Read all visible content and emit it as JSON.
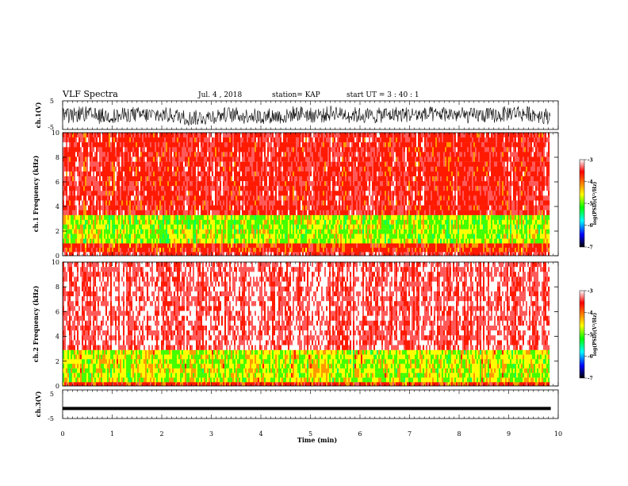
{
  "header": {
    "title": "VLF Spectra",
    "date": "Jul. 4 , 2018",
    "station": "station= KAP",
    "start": "start UT =  3 : 40 : 1"
  },
  "colorbar": {
    "label": "log(PSD)(V²/Hz)",
    "ticks": [
      "-3",
      "-4",
      "-5",
      "-6",
      "-7"
    ],
    "colors": [
      "#ffffff",
      "#ff0000",
      "#ffff00",
      "#00ff00",
      "#00ffff",
      "#0000ff",
      "#000000"
    ]
  },
  "chart_data": [
    {
      "type": "line",
      "panel": "ch1-waveform",
      "ylabel": "ch.1(V)",
      "ylim": [
        -5,
        5
      ],
      "yticks": [
        "5",
        "-5"
      ],
      "x_range_min": [
        0,
        9.85
      ],
      "description_values": "noise-like waveform oscillating roughly between -3.5 and 3.5 V"
    },
    {
      "type": "heatmap",
      "panel": "ch1-spectrogram",
      "ylabel": "ch.1 Frequency (kHz)",
      "ylim": [
        0,
        10
      ],
      "yticks": [
        "10",
        "8",
        "6",
        "4",
        "2",
        "0"
      ],
      "bands_khz": [
        {
          "from": 3.3,
          "to": 10,
          "level": -3.6
        },
        {
          "from": 1.0,
          "to": 3.3,
          "level": -4.6
        },
        {
          "from": 0.3,
          "to": 1.0,
          "level": -3.8
        },
        {
          "from": 0.0,
          "to": 0.3,
          "level": -3.5
        }
      ]
    },
    {
      "type": "heatmap",
      "panel": "ch2-spectrogram",
      "ylabel": "ch.2 Frequency (kHz)",
      "ylim": [
        0,
        10
      ],
      "yticks": [
        "10",
        "8",
        "6",
        "4",
        "2",
        "0"
      ],
      "bands_khz": [
        {
          "from": 2.9,
          "to": 10,
          "level": -3.3
        },
        {
          "from": 0.3,
          "to": 2.9,
          "level": -4.5
        },
        {
          "from": 0.0,
          "to": 0.3,
          "level": -3.8
        }
      ]
    },
    {
      "type": "line",
      "panel": "ch3-waveform",
      "ylabel": "ch.3(V)",
      "ylim": [
        -5,
        5
      ],
      "yticks": [
        "5",
        "-5"
      ],
      "values_constant": -1.5
    }
  ],
  "xaxis": {
    "label": "Time (min)",
    "range": [
      0,
      10
    ],
    "data_end": 9.85,
    "ticks": [
      "0",
      "1",
      "2",
      "3",
      "4",
      "5",
      "6",
      "7",
      "8",
      "9",
      "10"
    ]
  }
}
